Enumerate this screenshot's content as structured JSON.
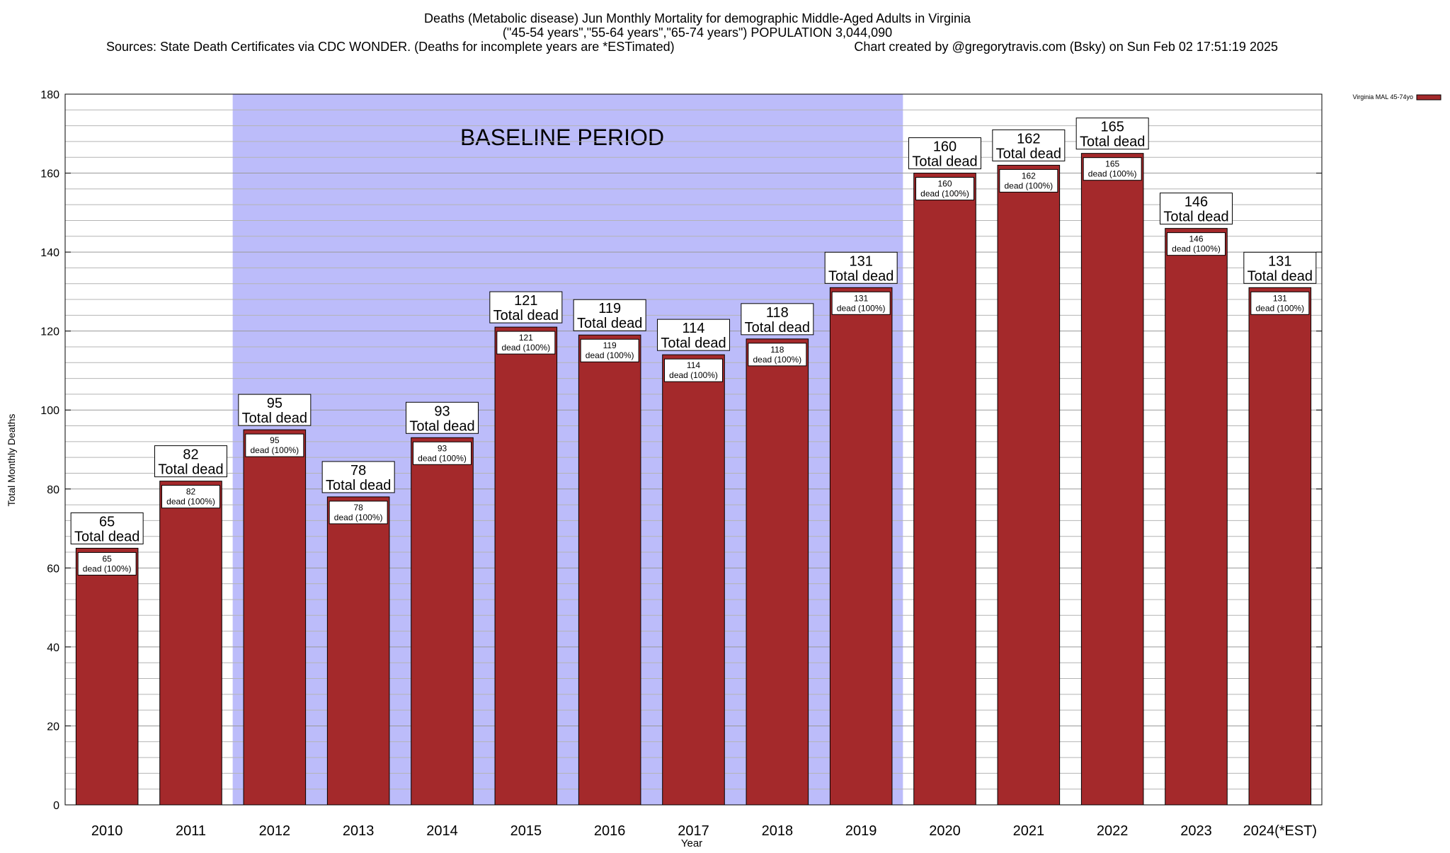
{
  "chart_data": {
    "type": "bar",
    "title_lines": [
      "Deaths (Metabolic disease) Jun Monthly Mortality for demographic Middle-Aged Adults in Virginia",
      "(\"45-54 years\",\"55-64 years\",\"65-74 years\") POPULATION 3,044,090",
      "Sources: State Death Certificates via CDC WONDER. (Deaths for incomplete years are *ESTimated)"
    ],
    "credit": "Chart created by @gregorytravis.com (Bsky) on Sun Feb 02 17:51:19 2025",
    "xlabel": "Year",
    "ylabel": "Total Monthly Deaths",
    "ylim": [
      0,
      180
    ],
    "yticks": [
      0,
      20,
      40,
      60,
      80,
      100,
      120,
      140,
      160,
      180
    ],
    "minor_grid_step": 4,
    "grid": true,
    "categories": [
      "2010",
      "2011",
      "2012",
      "2013",
      "2014",
      "2015",
      "2016",
      "2017",
      "2018",
      "2019",
      "2020",
      "2021",
      "2022",
      "2023",
      "2024(*EST)"
    ],
    "series": [
      {
        "name": "Virginia MAL 45-74yo",
        "color": "#a4292b",
        "values": [
          65,
          82,
          95,
          78,
          93,
          121,
          119,
          114,
          118,
          131,
          160,
          162,
          165,
          146,
          131
        ]
      }
    ],
    "top_labels": [
      "65",
      "82",
      "95",
      "78",
      "93",
      "121",
      "119",
      "114",
      "118",
      "131",
      "160",
      "162",
      "165",
      "146",
      "131"
    ],
    "top_label_suffix": "Total dead",
    "inner_labels": [
      "65",
      "82",
      "95",
      "78",
      "93",
      "121",
      "119",
      "114",
      "118",
      "131",
      "160",
      "162",
      "165",
      "146",
      "131"
    ],
    "inner_label_suffix": "dead (100%)",
    "baseline_period": {
      "label": "BASELINE PERIOD",
      "from": "2012",
      "to": "2019",
      "color": "#bcbcfa"
    },
    "legend_placement": "top-right"
  }
}
